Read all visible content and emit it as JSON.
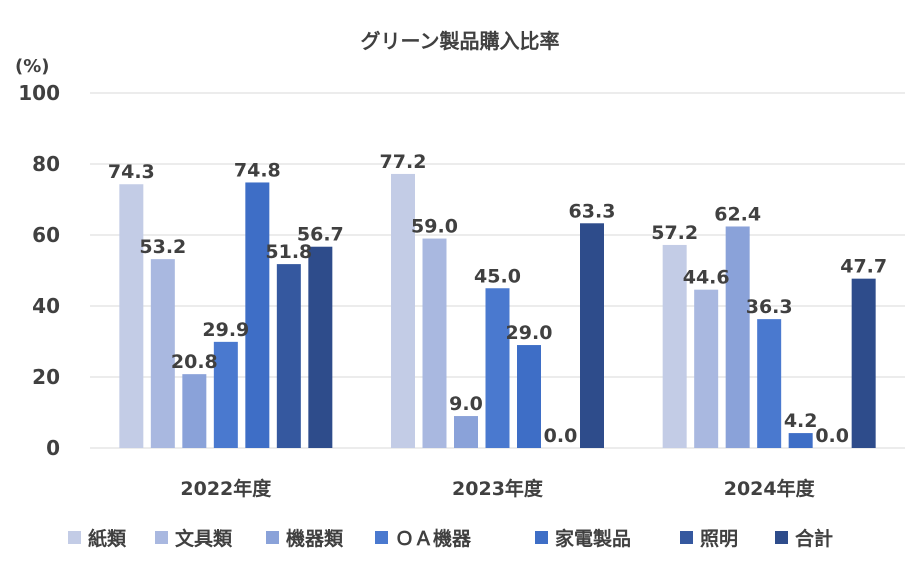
{
  "chart_data": {
    "type": "bar",
    "title": "グリーン製品購入比率",
    "ylabel": "(%)",
    "xlabel": "",
    "ylim": [
      0,
      100
    ],
    "yticks": [
      "0",
      "20",
      "40",
      "60",
      "80",
      "100"
    ],
    "grid": true,
    "legend_position": "bottom",
    "categories": [
      "2022年度",
      "2023年度",
      "2024年度"
    ],
    "series": [
      {
        "name": "紙類",
        "color": "#c3cce6",
        "values": [
          74.3,
          77.2,
          57.2
        ],
        "labels": [
          "74.3",
          "77.2",
          "57.2"
        ]
      },
      {
        "name": "文具類",
        "color": "#a9b8e0",
        "values": [
          53.2,
          59.0,
          44.6
        ],
        "labels": [
          "53.2",
          "59.0",
          "44.6"
        ]
      },
      {
        "name": "機器類",
        "color": "#8aa2d9",
        "values": [
          20.8,
          9.0,
          62.4
        ],
        "labels": [
          "20.8",
          "9.0",
          "62.4"
        ]
      },
      {
        "name": "ＯＡ機器",
        "color": "#4a79cf",
        "values": [
          29.9,
          45.0,
          36.3
        ],
        "labels": [
          "29.9",
          "45.0",
          "36.3"
        ]
      },
      {
        "name": "家電製品",
        "color": "#3e6ec6",
        "values": [
          74.8,
          29.0,
          4.2
        ],
        "labels": [
          "74.8",
          "29.0",
          "4.2"
        ]
      },
      {
        "name": "照明",
        "color": "#35589f",
        "values": [
          51.8,
          0.0,
          0.0
        ],
        "labels": [
          "51.8",
          "0.0",
          "0.0"
        ]
      },
      {
        "name": "合計",
        "color": "#2e4c8b",
        "values": [
          56.7,
          63.3,
          47.7
        ],
        "labels": [
          "56.7",
          "63.3",
          "47.7"
        ]
      }
    ]
  }
}
